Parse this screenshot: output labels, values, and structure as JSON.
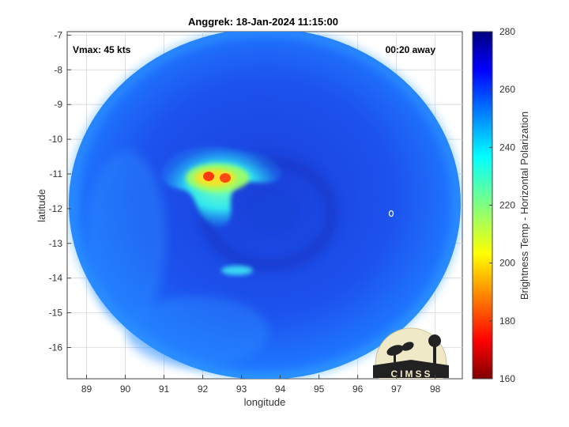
{
  "title": "Anggrek: 18-Jan-2024 11:15:00",
  "annotations": {
    "vmax": "Vmax: 45 kts",
    "time_away": "00:20 away"
  },
  "map": {
    "xlabel": "longitude",
    "ylabel": "latitude",
    "x_ticks": [
      89,
      90,
      91,
      92,
      93,
      94,
      95,
      96,
      97,
      98
    ],
    "y_ticks": [
      -7,
      -8,
      -9,
      -10,
      -11,
      -12,
      -13,
      -14,
      -15,
      -16
    ],
    "xlim": [
      88.5,
      98.7
    ],
    "ylim": [
      -16.9,
      -6.9
    ],
    "grid": true
  },
  "colorbar": {
    "label": "Brightness Temp - Horizontal Polarization",
    "ticks": [
      280,
      260,
      240,
      220,
      200,
      180,
      160
    ],
    "range": [
      160,
      280
    ],
    "colormap": "jet"
  },
  "logo": {
    "text": "CIMSS"
  },
  "colors": {
    "background_blue": "#1e5cf0",
    "warm_core": "#ff3a10",
    "cool_band": "#30e8f0"
  }
}
